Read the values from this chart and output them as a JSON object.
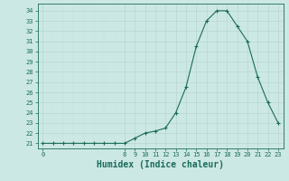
{
  "x": [
    0,
    1,
    2,
    3,
    4,
    5,
    6,
    7,
    8,
    9,
    10,
    11,
    12,
    13,
    14,
    15,
    16,
    17,
    18,
    19,
    20,
    21,
    22,
    23
  ],
  "y": [
    21,
    21,
    21,
    21,
    21,
    21,
    21,
    21,
    21,
    21.5,
    22,
    22.2,
    22.5,
    24,
    26.5,
    30.5,
    33,
    34,
    34,
    32.5,
    31,
    27.5,
    25,
    23
  ],
  "line_color": "#1a6b5a",
  "marker_color": "#1a6b5a",
  "bg_color": "#cce8e4",
  "grid_major_color": "#b8d8d0",
  "grid_minor_color": "#c8e2dc",
  "xlabel": "Humidex (Indice chaleur)",
  "xlabel_fontsize": 7,
  "xticks": [
    0,
    8,
    9,
    10,
    11,
    12,
    13,
    14,
    15,
    16,
    17,
    18,
    19,
    20,
    21,
    22,
    23
  ],
  "yticks": [
    21,
    22,
    23,
    24,
    25,
    26,
    27,
    28,
    29,
    30,
    31,
    32,
    33,
    34
  ],
  "ylim": [
    20.5,
    34.7
  ],
  "xlim": [
    -0.5,
    23.5
  ]
}
